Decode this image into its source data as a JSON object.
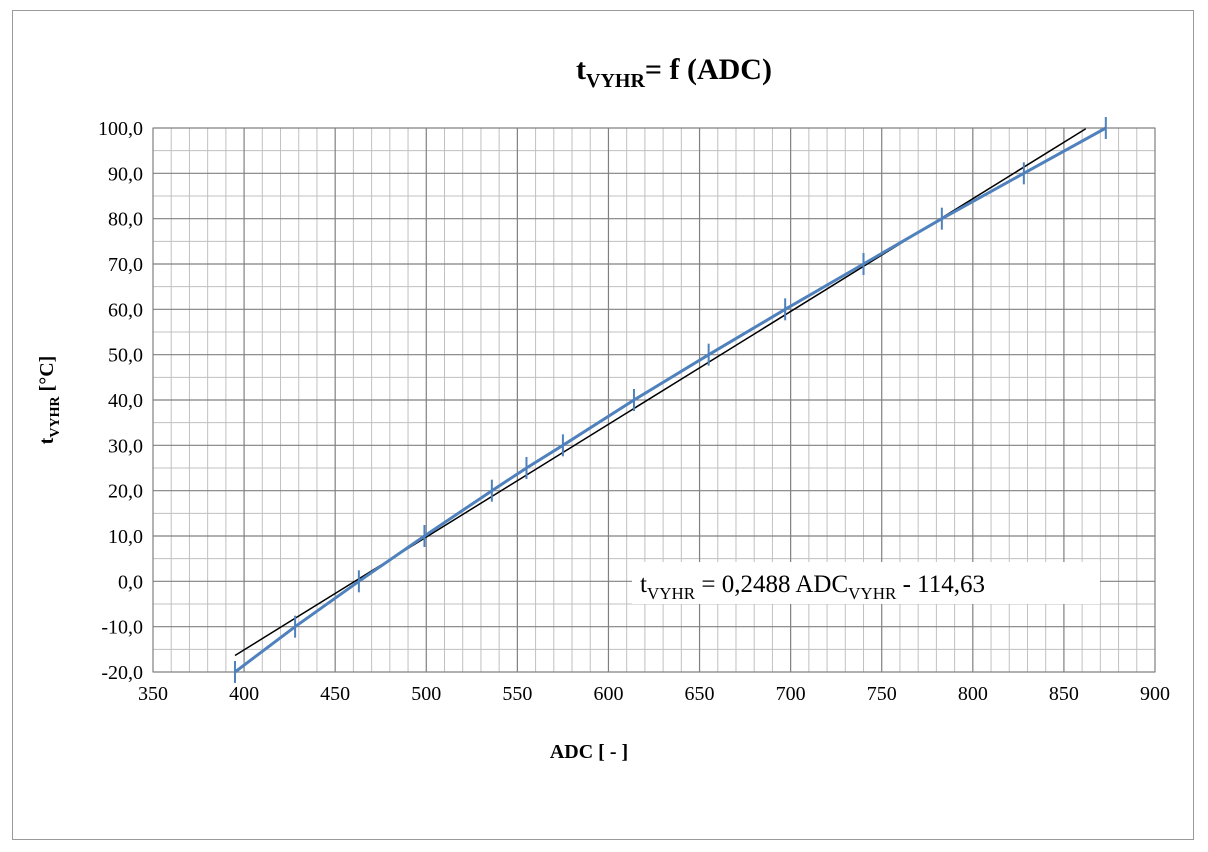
{
  "chart_data": {
    "type": "line",
    "title": {
      "main": "t",
      "sub": "VYHR",
      "rest": "= f (ADC)"
    },
    "xlabel": "ADC [ - ]",
    "ylabel": {
      "main": "t",
      "sub": "VYHR",
      "rest": " [°C]"
    },
    "xlim": [
      350,
      900
    ],
    "ylim": [
      -20,
      100
    ],
    "x_major_step": 50,
    "x_minor_step": 10,
    "y_major_step": 10,
    "y_minor_step": 5,
    "x_tick_labels": [
      "350",
      "400",
      "450",
      "500",
      "550",
      "600",
      "650",
      "700",
      "750",
      "800",
      "850",
      "900"
    ],
    "y_tick_labels": [
      "-20,0",
      "-10,0",
      "0,0",
      "10,0",
      "20,0",
      "30,0",
      "40,0",
      "50,0",
      "60,0",
      "70,0",
      "80,0",
      "90,0",
      "100,0"
    ],
    "grid": true,
    "colors": {
      "series": "#4f81bd",
      "trendline": "#000000",
      "grid_major": "#808080",
      "grid_minor": "#c0c0c0"
    },
    "series": [
      {
        "x": [
          395,
          428,
          463,
          499,
          536,
          555,
          575,
          614,
          655,
          697,
          740,
          783,
          828,
          873
        ],
        "y": [
          -20,
          -10,
          0,
          10,
          20,
          25,
          30,
          40,
          50,
          60,
          70,
          80,
          90,
          100
        ],
        "marker": "dash"
      }
    ],
    "trendline": {
      "slope": 0.2488,
      "intercept": -114.63,
      "x_range": [
        395,
        862
      ]
    },
    "equation_label": {
      "parts": [
        {
          "text": "t",
          "sub": false
        },
        {
          "text": "VYHR",
          "sub": true
        },
        {
          "text": " = 0,2488 ADC",
          "sub": false
        },
        {
          "text": "VYHR",
          "sub": true
        },
        {
          "text": " - 114,63",
          "sub": false
        }
      ]
    }
  }
}
